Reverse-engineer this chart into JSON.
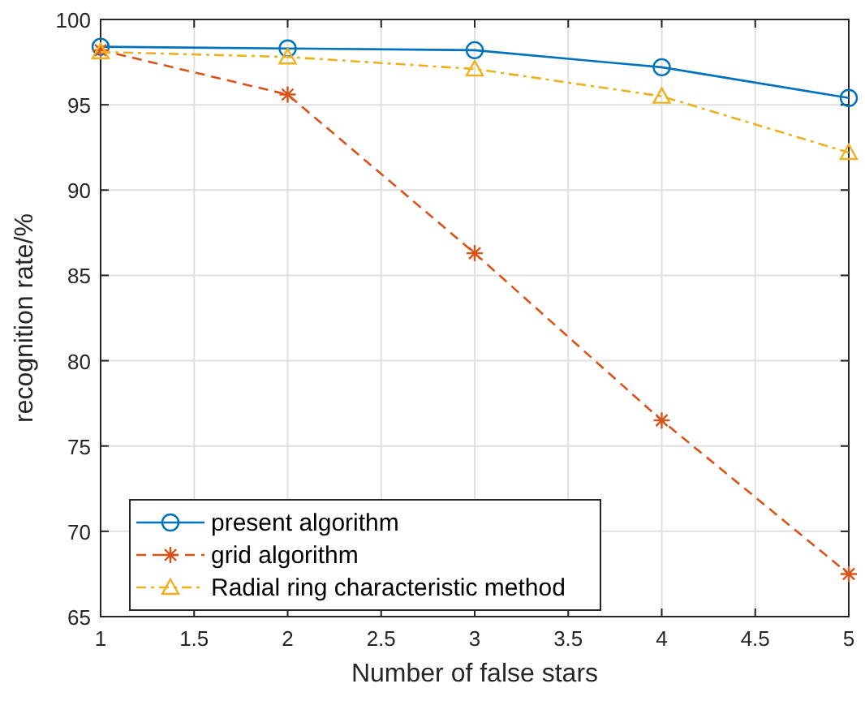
{
  "chart_data": {
    "type": "line",
    "xlabel": "Number of false stars",
    "ylabel": "recognition rate/%",
    "x": [
      1,
      2,
      3,
      4,
      5
    ],
    "series": [
      {
        "name": "present algorithm",
        "color": "#0072bd",
        "values": [
          98.4,
          98.3,
          98.2,
          97.2,
          95.4
        ],
        "marker": "circle",
        "line_style": "solid"
      },
      {
        "name": "grid algorithm",
        "color": "#d95319",
        "values": [
          98.2,
          95.6,
          86.3,
          76.5,
          67.5
        ],
        "marker": "cross",
        "line_style": "dashed"
      },
      {
        "name": "Radial ring characteristic method",
        "color": "#edb120",
        "values": [
          98.1,
          97.8,
          97.1,
          95.5,
          92.2
        ],
        "marker": "triangle",
        "line_style": "dashdot"
      }
    ],
    "xlim": [
      1,
      5
    ],
    "xticks": [
      1,
      1.5,
      2,
      2.5,
      3,
      3.5,
      4,
      4.5,
      5
    ],
    "ylim": [
      65,
      100
    ],
    "yticks": [
      65,
      70,
      75,
      80,
      85,
      90,
      95,
      100
    ],
    "grid": true,
    "legend": "bottom left"
  }
}
